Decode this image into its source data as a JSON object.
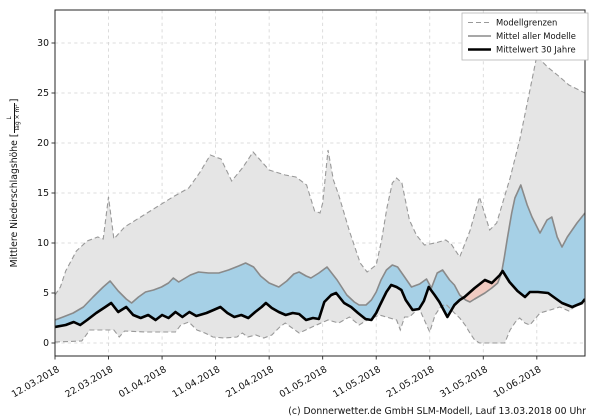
{
  "footer": "(c) Donnerwetter.de GmbH SLM-Modell, Lauf 13.03.2018 00 Uhr",
  "ylabel": {
    "prefix": "Mittlere Niederschlagshöhe [",
    "frac_num": "L",
    "frac_den": "Tag × m²",
    "suffix": "]"
  },
  "colors": {
    "band_fill": "#e5e5e5",
    "bound_line": "#999999",
    "model_mean_line": "#8a8a8a",
    "mean30_line": "#000000",
    "blue_fill": "#a6d0e6",
    "pink_fill": "#f0cac1",
    "grid": "#d4d4d4",
    "spine": "#262626",
    "text": "#111111"
  },
  "chart_data": {
    "type": "line",
    "title": "",
    "xlabel": "",
    "ylabel": "Mittlere Niederschlagshöhe [L/(Tag × m²)]",
    "grid": true,
    "legend_position": "top-right",
    "legend": [
      {
        "label": "Modellgrenzen",
        "style": "dashed-gray"
      },
      {
        "label": "Mittel aller Modelle",
        "style": "solid-gray"
      },
      {
        "label": "Mittelwert 30 Jahre",
        "style": "solid-black"
      }
    ],
    "x_axis": {
      "tick_days": [
        0,
        10,
        20,
        30,
        40,
        50,
        60,
        70,
        80,
        90
      ],
      "tick_labels": [
        "12.03.2018",
        "22.03.2018",
        "01.04.2018",
        "11.04.2018",
        "21.04.2018",
        "01.05.2018",
        "11.05.2018",
        "21.05.2018",
        "31.05.2018",
        "10.06.2018"
      ],
      "range_days": [
        0,
        99
      ]
    },
    "y_axis": {
      "ticks": [
        0,
        5,
        10,
        15,
        20,
        25,
        30
      ],
      "range": [
        -1.3,
        33.3
      ]
    },
    "fills": {
      "band": "gray area between upper and lower Modellgrenzen",
      "blue": "model_mean above mean_30y",
      "pink": "model_mean below mean_30y"
    },
    "series": [
      {
        "name": "Modellgrenzen (oben)",
        "role": "upper_bound",
        "x": [
          0,
          1,
          2,
          4,
          6,
          8,
          9,
          10,
          11,
          13,
          16,
          19,
          22,
          25,
          27,
          29,
          31,
          33,
          35,
          37,
          40,
          43,
          45,
          47,
          48.5,
          49.5,
          50,
          51,
          52,
          53,
          55,
          57,
          58.3,
          60,
          61,
          62,
          63,
          63.8,
          64.8,
          66.2,
          67.5,
          69,
          71,
          73,
          74,
          75.6,
          77.5,
          79.3,
          81.2,
          82.5,
          83.6,
          85,
          86.8,
          88.4,
          90,
          92,
          94.3,
          96,
          99
        ],
        "values": [
          4.8,
          5.6,
          7.2,
          9.2,
          10.2,
          10.6,
          10.4,
          14.6,
          10.4,
          11.6,
          12.6,
          13.6,
          14.6,
          15.5,
          17.0,
          18.8,
          18.4,
          16.2,
          17.5,
          19.1,
          17.3,
          16.8,
          16.6,
          15.8,
          13.2,
          13.0,
          14.0,
          19.3,
          16.3,
          14.8,
          11.2,
          8.0,
          7.1,
          7.8,
          10.3,
          13.5,
          16.0,
          16.5,
          16.0,
          12.3,
          10.8,
          9.8,
          10.0,
          10.3,
          9.9,
          8.6,
          11.2,
          14.6,
          11.3,
          12.0,
          14.0,
          16.5,
          20.3,
          24.5,
          28.7,
          27.6,
          26.6,
          25.8,
          25.0
        ]
      },
      {
        "name": "Modellgrenzen (unten)",
        "role": "lower_bound",
        "x": [
          0,
          5,
          6.5,
          11,
          12,
          13,
          17,
          22.5,
          23.5,
          25,
          26.5,
          28,
          29.5,
          31.5,
          34,
          35,
          36,
          37.5,
          39,
          40.5,
          42,
          43,
          45.6,
          48,
          51,
          53,
          55,
          56.8,
          58,
          60.6,
          63.8,
          64.5,
          65.3,
          66.2,
          68,
          70,
          71,
          72,
          73,
          74.6,
          75.6,
          76.6,
          77.5,
          78.4,
          79.3,
          84,
          85,
          86,
          86.8,
          87.8,
          88.7,
          90.6,
          92.5,
          94.3,
          96,
          97,
          99
        ],
        "values": [
          0.1,
          0.2,
          1.3,
          1.3,
          0.6,
          1.2,
          1.1,
          1.1,
          1.8,
          2.1,
          1.3,
          1.0,
          0.6,
          0.5,
          0.6,
          1.0,
          0.6,
          0.8,
          0.5,
          0.8,
          1.6,
          2.0,
          1.0,
          1.6,
          2.3,
          2.0,
          2.6,
          1.8,
          2.2,
          2.8,
          2.3,
          1.3,
          2.6,
          2.6,
          3.5,
          1.1,
          2.8,
          3.6,
          3.9,
          3.0,
          2.5,
          1.8,
          1.0,
          0.3,
          0.0,
          0.0,
          1.3,
          2.1,
          2.5,
          2.0,
          1.8,
          3.0,
          3.3,
          3.6,
          3.2,
          3.6,
          4.0
        ]
      },
      {
        "name": "Mittel aller Modelle",
        "role": "model_mean",
        "x": [
          0,
          1.5,
          3.4,
          5.3,
          7.1,
          9,
          10.3,
          11.8,
          13.3,
          14.3,
          15.6,
          16.9,
          18.4,
          19.9,
          21.2,
          22.1,
          23.1,
          25.3,
          26.8,
          28.7,
          30.6,
          32.4,
          34.3,
          35.6,
          37.1,
          38.4,
          40,
          41.8,
          43.3,
          44.6,
          45.6,
          46.9,
          47.8,
          49.3,
          50.8,
          52.7,
          54.5,
          55.9,
          56.8,
          58.1,
          59.1,
          60,
          60.9,
          61.9,
          63,
          64,
          65.3,
          66.6,
          68.1,
          69.4,
          70.3,
          71.4,
          72.4,
          73.7,
          74.6,
          75.6,
          76.7,
          77.5,
          78.4,
          80.3,
          81.6,
          82.7,
          83.4,
          83.9,
          84.5,
          85.3,
          85.9,
          87,
          87.6,
          88.2,
          89.1,
          90.6,
          91.9,
          92.8,
          93.8,
          94.7,
          95.7,
          97.5,
          99
        ],
        "values": [
          2.3,
          2.6,
          3.0,
          3.6,
          4.6,
          5.6,
          6.2,
          5.2,
          4.4,
          4.0,
          4.6,
          5.1,
          5.3,
          5.6,
          6.0,
          6.5,
          6.1,
          6.8,
          7.1,
          7.0,
          7.0,
          7.3,
          7.7,
          8.0,
          7.6,
          6.7,
          6.0,
          5.6,
          6.2,
          6.9,
          7.1,
          6.7,
          6.5,
          7.0,
          7.6,
          6.3,
          4.8,
          4.1,
          3.8,
          3.8,
          4.3,
          5.1,
          6.3,
          7.3,
          7.8,
          7.6,
          6.6,
          5.6,
          5.9,
          6.4,
          5.5,
          7.0,
          7.3,
          6.3,
          5.8,
          4.8,
          4.3,
          4.1,
          4.4,
          5.0,
          5.5,
          6.0,
          7.0,
          8.5,
          10.5,
          13.0,
          14.5,
          15.8,
          14.8,
          13.8,
          12.6,
          11.0,
          12.3,
          12.6,
          10.6,
          9.6,
          10.6,
          12.0,
          13.0
        ]
      },
      {
        "name": "Mittelwert 30 Jahre",
        "role": "mean_30y",
        "x": [
          0,
          2,
          3.5,
          4.7,
          6,
          7.7,
          9.4,
          10.5,
          11.8,
          13.3,
          14.6,
          16,
          17.4,
          18.8,
          20,
          21.2,
          22.5,
          23.8,
          25.1,
          26.4,
          28.3,
          29.6,
          30.9,
          32.2,
          33.5,
          34.8,
          36.1,
          37.4,
          38.6,
          39.4,
          40.5,
          41.8,
          43.1,
          44.4,
          45.6,
          46.9,
          48.2,
          49.3,
          50.3,
          51.6,
          52.5,
          54,
          55.3,
          56.6,
          58,
          59.1,
          60,
          60.9,
          61.9,
          62.8,
          63.8,
          64.7,
          65.5,
          66.8,
          68,
          68.9,
          69.8,
          70.9,
          71.8,
          73.3,
          74.6,
          75.6,
          76.5,
          78.4,
          80.3,
          81.6,
          83.1,
          83.6,
          84.9,
          86.4,
          87.8,
          88.7,
          90.2,
          92.1,
          93.4,
          94.7,
          96.6,
          98.4,
          99
        ],
        "values": [
          1.6,
          1.8,
          2.1,
          1.8,
          2.3,
          3.0,
          3.6,
          4.0,
          3.1,
          3.6,
          2.8,
          2.5,
          2.8,
          2.3,
          2.8,
          2.5,
          3.1,
          2.6,
          3.1,
          2.7,
          3.0,
          3.3,
          3.6,
          3.0,
          2.6,
          2.8,
          2.5,
          3.1,
          3.6,
          4.0,
          3.5,
          3.1,
          2.8,
          3.0,
          2.9,
          2.3,
          2.5,
          2.4,
          4.1,
          4.8,
          5.0,
          4.0,
          3.6,
          3.0,
          2.4,
          2.3,
          3.0,
          4.0,
          5.1,
          5.8,
          5.6,
          5.3,
          4.3,
          3.3,
          3.4,
          4.2,
          5.6,
          4.8,
          4.1,
          2.6,
          3.8,
          4.3,
          4.6,
          5.5,
          6.3,
          6.0,
          6.8,
          7.2,
          6.1,
          5.2,
          4.6,
          5.1,
          5.1,
          5.0,
          4.5,
          4.0,
          3.6,
          4.0,
          4.4
        ]
      }
    ]
  }
}
